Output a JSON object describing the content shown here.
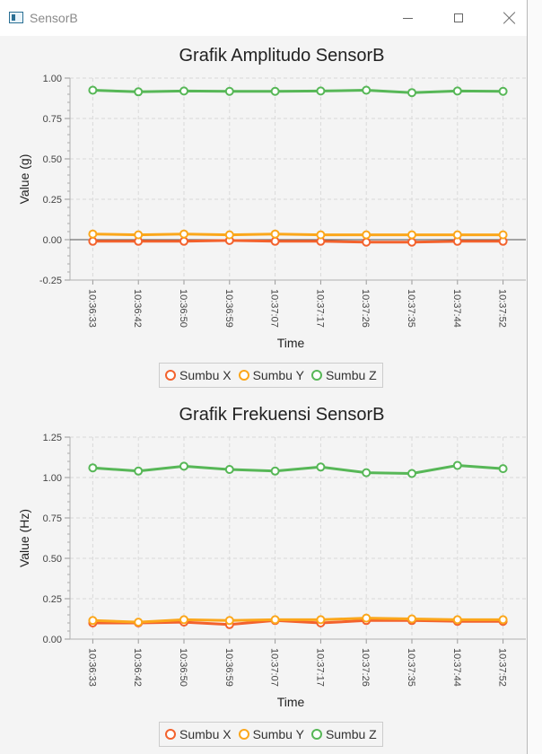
{
  "window": {
    "title": "SensorB",
    "controls": {
      "minimize": "minimize",
      "maximize": "maximize",
      "close": "close"
    }
  },
  "colors": {
    "series": [
      "#f3622d",
      "#fba71b",
      "#57b757"
    ],
    "title_bar_bg": "#ffffff",
    "panel_bg": "#f4f4f4"
  },
  "chart_data": [
    {
      "type": "line",
      "title": "Grafik Amplitudo SensorB",
      "xlabel": "Time",
      "ylabel": "Value (g)",
      "categories": [
        "10:36:33",
        "10:36:42",
        "10:36:50",
        "10:36:59",
        "10:37:07",
        "10:37:17",
        "10:37:26",
        "10:37:35",
        "10:37:44",
        "10:37:52"
      ],
      "yticks": [
        "-0.25",
        "0.00",
        "0.25",
        "0.50",
        "0.75",
        "1.00"
      ],
      "ylim": [
        -0.25,
        1.0
      ],
      "grid": true,
      "zero_line": true,
      "legend_position": "bottom",
      "series": [
        {
          "name": "Sumbu X",
          "values": [
            -0.01,
            -0.01,
            -0.01,
            -0.005,
            -0.01,
            -0.01,
            -0.015,
            -0.015,
            -0.01,
            -0.01
          ]
        },
        {
          "name": "Sumbu Y",
          "values": [
            0.035,
            0.03,
            0.035,
            0.03,
            0.035,
            0.03,
            0.03,
            0.03,
            0.03,
            0.03
          ]
        },
        {
          "name": "Sumbu Z",
          "values": [
            0.925,
            0.915,
            0.92,
            0.918,
            0.918,
            0.92,
            0.925,
            0.91,
            0.92,
            0.918
          ]
        }
      ]
    },
    {
      "type": "line",
      "title": "Grafik Frekuensi SensorB",
      "xlabel": "Time",
      "ylabel": "Value (Hz)",
      "categories": [
        "10:36:33",
        "10:36:42",
        "10:36:50",
        "10:36:59",
        "10:37:07",
        "10:37:17",
        "10:37:26",
        "10:37:35",
        "10:37:44",
        "10:37:52"
      ],
      "yticks": [
        "0.00",
        "0.25",
        "0.50",
        "0.75",
        "1.00",
        "1.25"
      ],
      "ylim": [
        0,
        1.25
      ],
      "grid": true,
      "zero_line": false,
      "legend_position": "bottom",
      "series": [
        {
          "name": "Sumbu X",
          "values": [
            0.1,
            0.1,
            0.105,
            0.09,
            0.115,
            0.1,
            0.115,
            0.115,
            0.11,
            0.11
          ]
        },
        {
          "name": "Sumbu Y",
          "values": [
            0.115,
            0.105,
            0.12,
            0.115,
            0.12,
            0.12,
            0.13,
            0.125,
            0.12,
            0.12
          ]
        },
        {
          "name": "Sumbu Z",
          "values": [
            1.06,
            1.04,
            1.07,
            1.05,
            1.04,
            1.065,
            1.03,
            1.025,
            1.075,
            1.055
          ]
        }
      ]
    }
  ]
}
